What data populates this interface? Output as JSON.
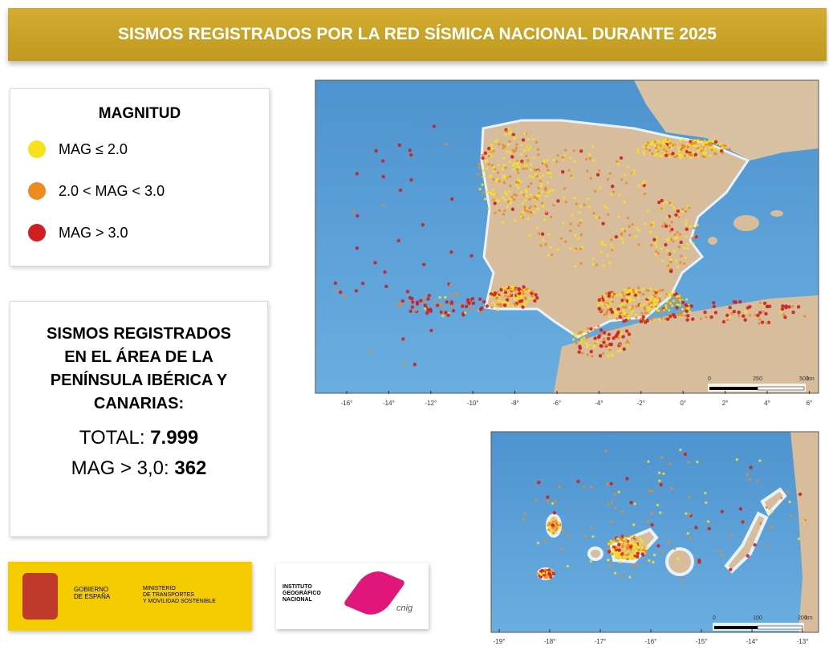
{
  "header": {
    "title": "SISMOS REGISTRADOS POR LA RED SÍSMICA NACIONAL DURANTE 2025"
  },
  "legend": {
    "title": "MAGNITUD",
    "items": [
      {
        "label": "MAG ≤ 2.0",
        "color": "#f7e21a"
      },
      {
        "label": "2.0 < MAG <  3.0",
        "color": "#ee8a1f"
      },
      {
        "label": "MAG > 3.0",
        "color": "#d21e1e"
      }
    ]
  },
  "stats": {
    "heading": [
      "SISMOS REGISTRADOS",
      "EN EL ÁREA DE LA",
      "PENÍNSULA IBÉRICA Y",
      "CANARIAS:"
    ],
    "total_label": "TOTAL:",
    "total": "7.999",
    "mag_label": "MAG >  3,0:",
    "mag": "362"
  },
  "logos": {
    "gobierno": [
      "GOBIERNO",
      "DE ESPAÑA"
    ],
    "ministerio": [
      "MINISTERIO",
      "DE TRANSPORTES",
      "Y MOVILIDAD SOSTENIBLE"
    ],
    "ign": [
      "INSTITUTO",
      "GEOGRÁFICO",
      "NACIONAL"
    ],
    "cnig": "cnig"
  },
  "maps": [
    {
      "x_labels": [
        "-16°",
        "-14°",
        "-12°",
        "-10°",
        "-8°",
        "-6°",
        "-4°",
        "-2°",
        "0°",
        "2°",
        "4°",
        "6°"
      ],
      "scale": [
        "0",
        "250",
        "500",
        "km"
      ]
    },
    {
      "x_labels": [
        "-19°",
        "-18°",
        "-17°",
        "-16°",
        "-15°",
        "-14°",
        "-13°"
      ],
      "scale": [
        "0",
        "100",
        "200",
        "km"
      ]
    }
  ]
}
